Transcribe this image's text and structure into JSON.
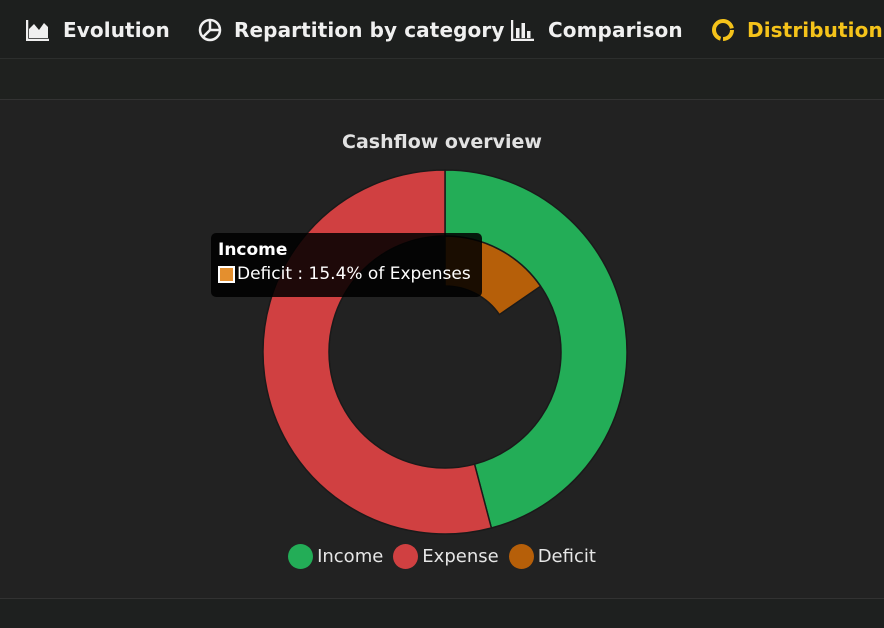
{
  "nav": {
    "tabs": [
      {
        "label": "Evolution",
        "icon": "area-chart-icon",
        "active": false
      },
      {
        "label": "Repartition by category",
        "icon": "pie-chart-icon",
        "active": false
      },
      {
        "label": "Comparison",
        "icon": "bar-chart-icon",
        "active": false
      },
      {
        "label": "Distribution",
        "icon": "donut-chart-icon",
        "active": true
      }
    ],
    "active_color": "#f5c31a"
  },
  "chart_data": {
    "type": "pie",
    "variant": "doughnut",
    "title": "Cashflow overview",
    "rings": [
      {
        "name": "outer",
        "slices": [
          {
            "label": "Income",
            "share": 0.459,
            "color": "#23ad57"
          },
          {
            "label": "Expense",
            "share": 0.541,
            "color": "#d04041"
          }
        ]
      },
      {
        "name": "inner",
        "slices": [
          {
            "label": "Deficit",
            "share": 0.154,
            "of": "Expenses",
            "color": "#b65f09"
          }
        ]
      }
    ],
    "legend": [
      {
        "label": "Income",
        "color": "#23ad57"
      },
      {
        "label": "Expense",
        "color": "#d04041"
      },
      {
        "label": "Deficit",
        "color": "#b65f09"
      }
    ],
    "legend_position": "bottom"
  },
  "tooltip": {
    "title": "Income",
    "text": "Deficit : 15.4% of Expenses",
    "swatch_color": "#e48f2e"
  }
}
